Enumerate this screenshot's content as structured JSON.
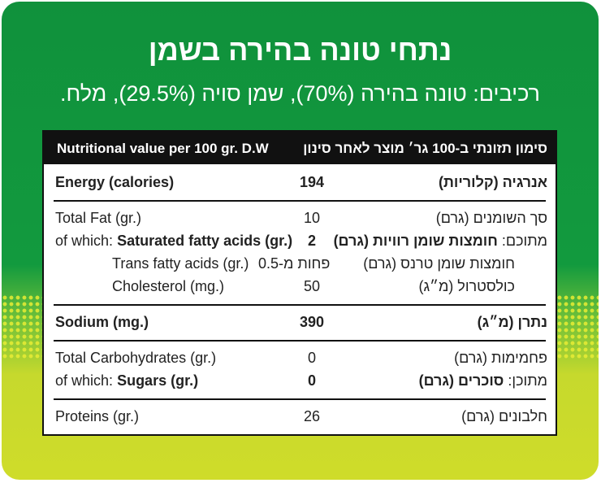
{
  "title": "נתחי טונה בהירה בשמן",
  "ingredients": "רכיבים: טונה בהירה (70%), שמן סויה (29.5%), מלח.",
  "table": {
    "header_en": "Nutritional value per 100 gr. D.W",
    "header_he": "סימון תזונתי ב-100 גר׳ מוצר לאחר סינון",
    "energy": {
      "en": "Energy (calories)",
      "value": "194",
      "he": "אנרגיה (קלוריות)"
    },
    "total_fat": {
      "en": "Total Fat (gr.)",
      "value": "10",
      "he": "סך השומנים (גרם)"
    },
    "saturated": {
      "en_prefix": "of which:",
      "en": "Saturated fatty acids (gr.)",
      "value": "2",
      "he_prefix": "מתוכם:",
      "he": "חומצות שומן רוויות (גרם)"
    },
    "trans": {
      "en": "Trans fatty acids (gr.)",
      "value": "פחות מ-0.5",
      "he": "חומצות שומן טרנס (גרם)"
    },
    "cholesterol": {
      "en": "Cholesterol (mg.)",
      "value": "50",
      "he": "כולסטרול (מ״ג)"
    },
    "sodium": {
      "en": "Sodium (mg.)",
      "value": "390",
      "he": "נתרן (מ״ג)"
    },
    "carbs": {
      "en": "Total Carbohydrates (gr.)",
      "value": "0",
      "he": "פחמימות (גרם)"
    },
    "sugars": {
      "en_prefix": "of which:",
      "en": "Sugars (gr.)",
      "value": "0",
      "he_prefix": "מתוכן:",
      "he": "סוכרים (גרם)"
    },
    "proteins": {
      "en": "Proteins (gr.)",
      "value": "26",
      "he": "חלבונים (גרם)"
    }
  }
}
